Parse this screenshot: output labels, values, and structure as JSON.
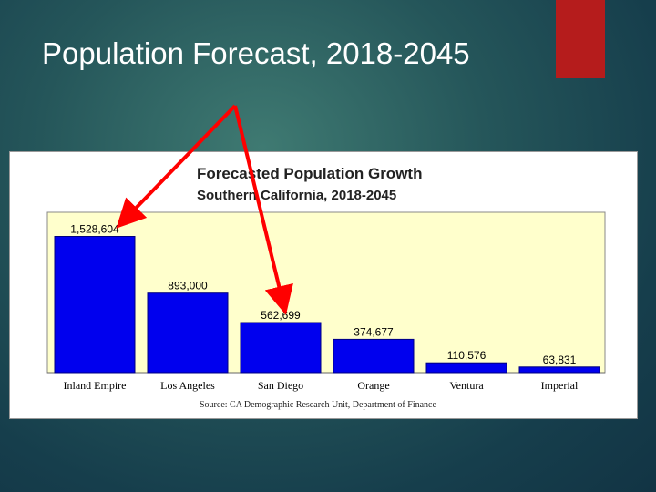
{
  "slide": {
    "title": "Population Forecast, 2018-2045"
  },
  "colors": {
    "bar": "#0000ee",
    "plot_bg": "#ffffcc",
    "arrow": "#ff0000",
    "accent_block": "#b51c1c"
  },
  "chart_data": {
    "type": "bar",
    "title": "Forecasted Population Growth",
    "subtitle": "Southern California, 2018-2045",
    "categories": [
      "Inland Empire",
      "Los Angeles",
      "San Diego",
      "Orange",
      "Ventura",
      "Imperial"
    ],
    "values": [
      1528604,
      893000,
      562699,
      374677,
      110576,
      63831
    ],
    "value_labels": [
      "1,528,604",
      "893,000",
      "562,699",
      "374,677",
      "110,576",
      "63,831"
    ],
    "ylim": [
      0,
      1800000
    ],
    "xlabel": "",
    "ylabel": "",
    "grid": false,
    "source": "Source:   CA Demographic Research Unit, Department of Finance"
  }
}
